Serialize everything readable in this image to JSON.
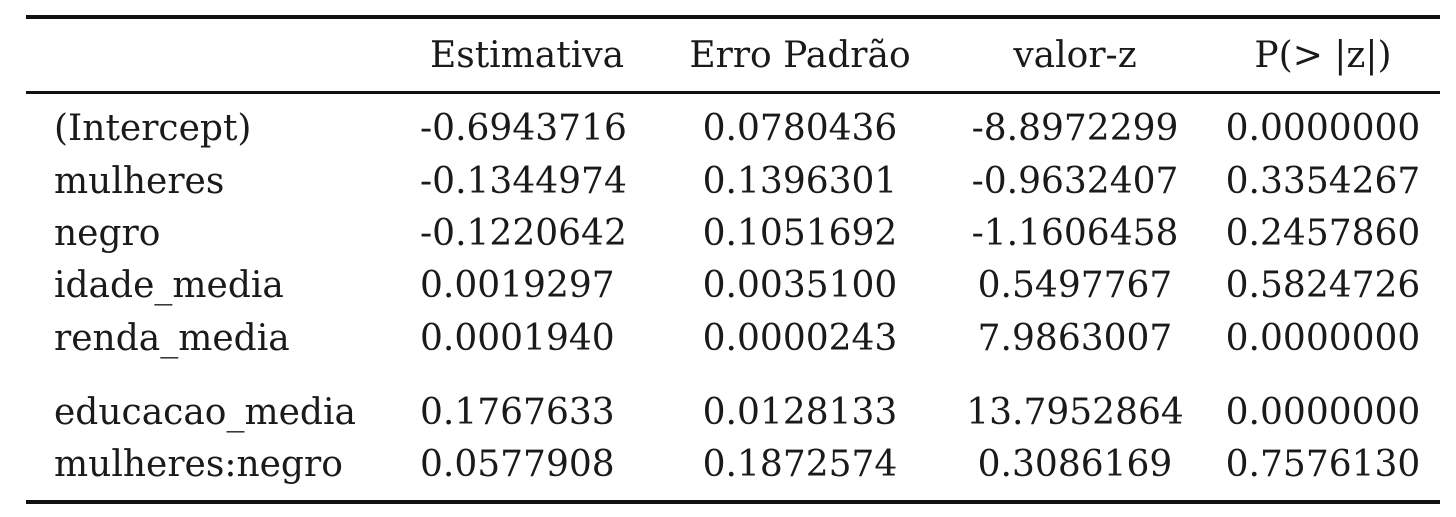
{
  "table": {
    "headers": [
      "",
      "Estimativa",
      "Erro Padrão",
      "valor-z",
      "P(> |z|)"
    ],
    "rows": [
      {
        "term": "(Intercept)",
        "estimate": "-0.6943716",
        "std_error": "0.0780436",
        "z_value": "-8.8972299",
        "p_value": "0.0000000"
      },
      {
        "term": "mulheres",
        "estimate": "-0.1344974",
        "std_error": "0.1396301",
        "z_value": "-0.9632407",
        "p_value": "0.3354267"
      },
      {
        "term": "negro",
        "estimate": "-0.1220642",
        "std_error": "0.1051692",
        "z_value": "-1.1606458",
        "p_value": "0.2457860"
      },
      {
        "term": "idade_media",
        "estimate": "0.0019297",
        "std_error": "0.0035100",
        "z_value": "0.5497767",
        "p_value": "0.5824726"
      },
      {
        "term": "renda_media",
        "estimate": "0.0001940",
        "std_error": "0.0000243",
        "z_value": "7.9863007",
        "p_value": "0.0000000"
      },
      {
        "term": "educacao_media",
        "estimate": "0.1767633",
        "std_error": "0.0128133",
        "z_value": "13.7952864",
        "p_value": "0.0000000"
      },
      {
        "term": "mulheres:negro",
        "estimate": "0.0577908",
        "std_error": "0.1872574",
        "z_value": "0.3086169",
        "p_value": "0.7576130"
      }
    ]
  }
}
